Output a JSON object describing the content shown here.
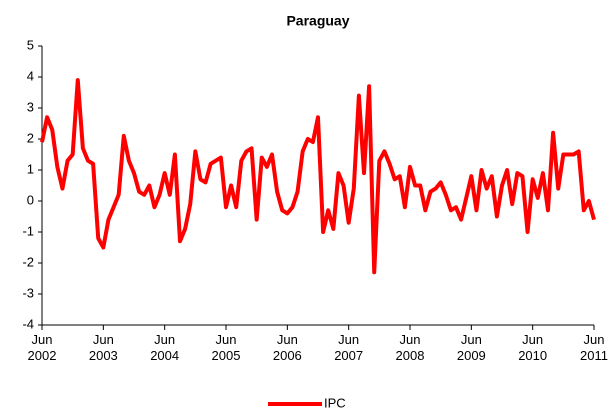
{
  "chart_data": {
    "type": "line",
    "title": "Paraguay",
    "categories": [
      "Jun 2002",
      null,
      null,
      null,
      null,
      null,
      null,
      null,
      null,
      null,
      null,
      null,
      "Jun 2003",
      null,
      null,
      null,
      null,
      null,
      null,
      null,
      null,
      null,
      null,
      null,
      "Jun 2004",
      null,
      null,
      null,
      null,
      null,
      null,
      null,
      null,
      null,
      null,
      null,
      "Jun 2005",
      null,
      null,
      null,
      null,
      null,
      null,
      null,
      null,
      null,
      null,
      null,
      "Jun 2006",
      null,
      null,
      null,
      null,
      null,
      null,
      null,
      null,
      null,
      null,
      null,
      "Jun 2007",
      null,
      null,
      null,
      null,
      null,
      null,
      null,
      null,
      null,
      null,
      null,
      "Jun 2008",
      null,
      null,
      null,
      null,
      null,
      null,
      null,
      null,
      null,
      null,
      null,
      "Jun 2009",
      null,
      null,
      null,
      null,
      null,
      null,
      null,
      null,
      null,
      null,
      null,
      "Jun 2010",
      null,
      null,
      null,
      null,
      null,
      null,
      null,
      null,
      null,
      null,
      null,
      "Jun 2011"
    ],
    "series": [
      {
        "name": "IPC",
        "color": "#ff0000",
        "values": [
          1.9,
          2.7,
          2.3,
          1.1,
          0.4,
          1.3,
          1.5,
          3.9,
          1.7,
          1.3,
          1.2,
          -1.2,
          -1.5,
          -0.6,
          -0.2,
          0.2,
          2.1,
          1.3,
          0.9,
          0.3,
          0.2,
          0.5,
          -0.2,
          0.2,
          0.9,
          0.2,
          1.5,
          -1.3,
          -0.9,
          -0.1,
          1.6,
          0.7,
          0.6,
          1.2,
          1.3,
          1.4,
          -0.2,
          0.5,
          -0.2,
          1.3,
          1.6,
          1.7,
          -0.6,
          1.4,
          1.1,
          1.5,
          0.3,
          -0.3,
          -0.4,
          -0.2,
          0.3,
          1.6,
          2.0,
          1.9,
          2.7,
          -1.0,
          -0.3,
          -0.9,
          0.9,
          0.5,
          -0.7,
          0.4,
          3.4,
          0.9,
          3.7,
          -2.3,
          1.3,
          1.6,
          1.2,
          0.7,
          0.8,
          -0.2,
          1.1,
          0.5,
          0.5,
          -0.3,
          0.3,
          0.4,
          0.6,
          0.2,
          -0.3,
          -0.2,
          -0.6,
          0.1,
          0.8,
          -0.3,
          1.0,
          0.4,
          0.8,
          -0.5,
          0.5,
          1.0,
          -0.1,
          0.9,
          0.8,
          -1.0,
          0.7,
          0.1,
          0.9,
          -0.3,
          2.2,
          0.4,
          1.5,
          1.5,
          1.5,
          1.6,
          -0.3,
          0.0,
          -0.6
        ]
      }
    ],
    "ylim": [
      -4,
      5
    ],
    "yticks": [
      -4,
      -3,
      -2,
      -1,
      0,
      1,
      2,
      3,
      4,
      5
    ],
    "legend": "bottom"
  }
}
